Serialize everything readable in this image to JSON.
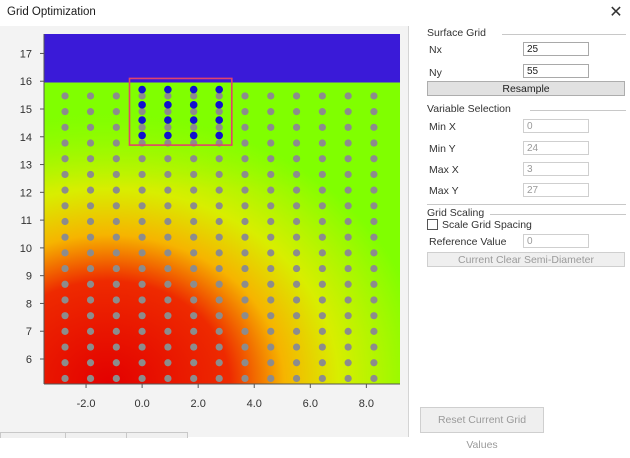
{
  "window": {
    "title": "Grid Optimization"
  },
  "surface_grid": {
    "title": "Surface Grid",
    "nx_label": "Nx",
    "nx_value": "25",
    "ny_label": "Ny",
    "ny_value": "55",
    "resample_label": "Resample"
  },
  "variable_selection": {
    "title": "Variable Selection",
    "min_x_label": "Min X",
    "min_x_value": "0",
    "min_y_label": "Min Y",
    "min_y_value": "24",
    "max_x_label": "Max X",
    "max_x_value": "3",
    "max_y_label": "Max Y",
    "max_y_value": "27"
  },
  "grid_scaling": {
    "title": "Grid Scaling",
    "scale_spacing_label": "Scale Grid Spacing",
    "reference_label": "Reference Value",
    "reference_value": "0",
    "semi_diameter_label": "Current Clear Semi-Diameter"
  },
  "reset_label": "Reset Current Grid Values",
  "colors": {
    "high": "#e00000",
    "mid": "#f0e000",
    "low": "#80ff00",
    "top": "#3a1ad8",
    "selection_box": "#e0446a"
  },
  "chart_data": {
    "type": "heatmap",
    "xlim": [
      -3.5,
      9.2
    ],
    "ylim": [
      5.1,
      17.7
    ],
    "x_ticks": [
      "-2.0",
      "0.0",
      "2.0",
      "4.0",
      "6.0",
      "8.0"
    ],
    "y_ticks": [
      "6",
      "7",
      "8",
      "9",
      "10",
      "11",
      "12",
      "13",
      "14",
      "15",
      "16",
      "17"
    ],
    "grid_points": {
      "x": [
        -2.75,
        -1.84,
        -0.92,
        0.0,
        0.92,
        1.84,
        2.75,
        3.67,
        4.59,
        5.51,
        6.43,
        7.35,
        8.27
      ],
      "y_first": 5.3,
      "y_step": 0.565,
      "count_y": 19
    },
    "selected_points": {
      "x": [
        0.0,
        0.92,
        1.84,
        2.75
      ],
      "y": [
        14.05,
        14.6,
        15.15,
        15.7
      ]
    },
    "selection_box": {
      "x_range": [
        -0.45,
        3.2
      ],
      "y_range": [
        13.7,
        16.1
      ]
    }
  }
}
